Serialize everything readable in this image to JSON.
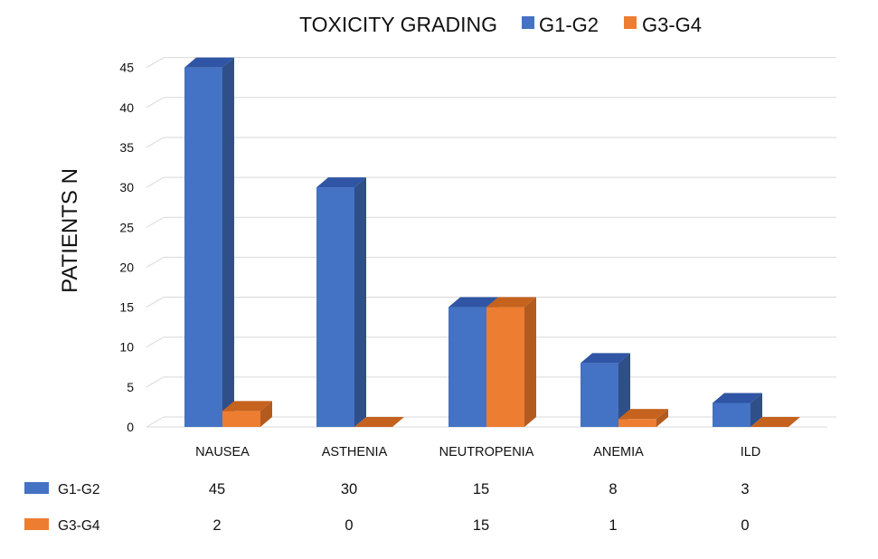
{
  "chart_data": {
    "type": "bar",
    "title": "TOXICITY GRADING",
    "ylabel": "PATIENTS N",
    "xlabel": "",
    "ylim": [
      0,
      45
    ],
    "yticks": [
      0,
      5,
      10,
      15,
      20,
      25,
      30,
      35,
      40,
      45
    ],
    "grid": true,
    "legend_position": "top",
    "categories": [
      "NAUSEA",
      "ASTHENIA",
      "NEUTROPENIA",
      "ANEMIA",
      "ILD"
    ],
    "series": [
      {
        "name": "G1-G2",
        "values": [
          45,
          30,
          15,
          8,
          3
        ],
        "color": "#4472C4",
        "side_color": "#2F4F88",
        "top_color": "#2F55A4"
      },
      {
        "name": "G3-G4",
        "values": [
          2,
          0,
          15,
          1,
          0
        ],
        "color": "#ED7D31",
        "side_color": "#B35A1F",
        "top_color": "#C4621E"
      }
    ],
    "data_table": true
  }
}
